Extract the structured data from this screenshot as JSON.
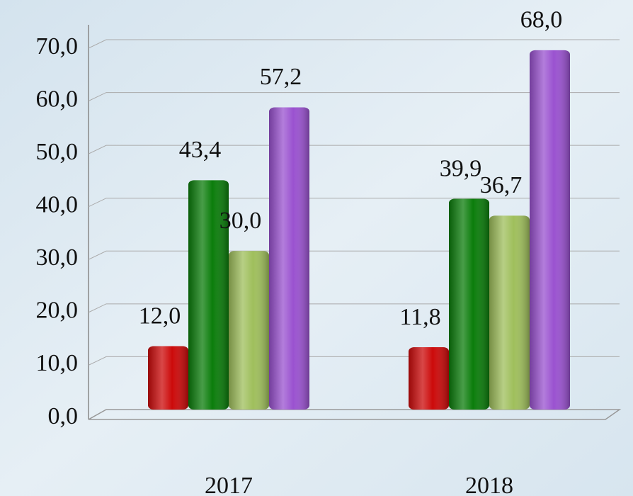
{
  "chart_data": {
    "type": "bar",
    "categories": [
      "2017",
      "2018"
    ],
    "series": [
      {
        "color": "#cc0a0a",
        "values": [
          12.0,
          11.8
        ],
        "value_labels": [
          "12,0",
          "11,8"
        ]
      },
      {
        "color": "#0b7d0b",
        "values": [
          43.4,
          39.9
        ],
        "value_labels": [
          "43,4",
          "39,9"
        ]
      },
      {
        "color": "#9fbf5c",
        "values": [
          30.0,
          36.7
        ],
        "value_labels": [
          "30,0",
          "36,7"
        ]
      },
      {
        "color": "#9a52d0",
        "values": [
          57.2,
          68.0
        ],
        "value_labels": [
          "57,2",
          "68,0"
        ]
      }
    ],
    "ylim": [
      0,
      70
    ],
    "yticks": [
      {
        "value": 0,
        "label": "0,0"
      },
      {
        "value": 10,
        "label": "10,0"
      },
      {
        "value": 20,
        "label": "20,0"
      },
      {
        "value": 30,
        "label": "30,0"
      },
      {
        "value": 40,
        "label": "40,0"
      },
      {
        "value": 50,
        "label": "50,0"
      },
      {
        "value": 60,
        "label": "60,0"
      },
      {
        "value": 70,
        "label": "70,0"
      }
    ],
    "grid": true
  }
}
